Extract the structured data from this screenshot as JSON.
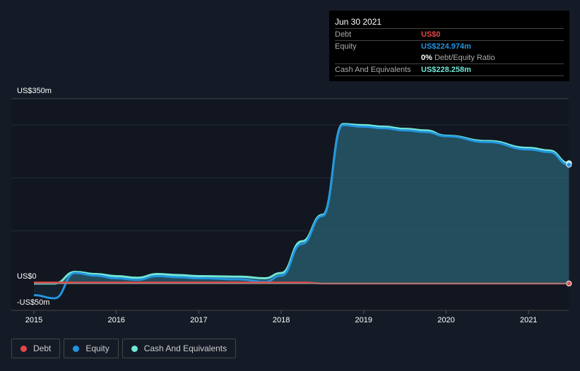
{
  "tooltip": {
    "date": "Jun 30 2021",
    "debt_label": "Debt",
    "debt_value": "US$0",
    "equity_label": "Equity",
    "equity_value": "US$224.974m",
    "ratio_value": "0%",
    "ratio_label": "Debt/Equity Ratio",
    "cash_label": "Cash And Equivalents",
    "cash_value": "US$228.258m"
  },
  "colors": {
    "debt": "#e84545",
    "equity": "#2394df",
    "cash": "#71e7d6"
  },
  "chart_data": {
    "type": "line",
    "ylim": [
      -50,
      350
    ],
    "y_tick_labels": [
      "US$350m",
      "US$0",
      "-US$50m"
    ],
    "x_tick_labels": [
      "2015",
      "2016",
      "2017",
      "2018",
      "2019",
      "2020",
      "2021"
    ],
    "legend": [
      "Debt",
      "Equity",
      "Cash And Equivalents"
    ],
    "legend_position": "bottom-left",
    "series": [
      {
        "name": "Cash And Equivalents",
        "x": [
          2015,
          2015.25,
          2015.5,
          2015.75,
          2016,
          2016.25,
          2016.5,
          2016.75,
          2017,
          2017.5,
          2017.8,
          2018,
          2018.25,
          2018.5,
          2018.75,
          2019,
          2019.25,
          2019.5,
          2019.75,
          2020,
          2020.5,
          2021,
          2021.25,
          2021.49
        ],
        "values": [
          0,
          0,
          22,
          18,
          14,
          11,
          18,
          16,
          14,
          13,
          10,
          20,
          80,
          130,
          302,
          300,
          297,
          293,
          290,
          280,
          270,
          257,
          252,
          228
        ]
      },
      {
        "name": "Equity",
        "x": [
          2015,
          2015.25,
          2015.5,
          2015.75,
          2016,
          2016.25,
          2016.5,
          2016.75,
          2017,
          2017.5,
          2017.8,
          2018,
          2018.25,
          2018.5,
          2018.75,
          2019,
          2019.25,
          2019.5,
          2019.75,
          2020,
          2020.5,
          2021,
          2021.25,
          2021.49
        ],
        "values": [
          -22,
          -28,
          20,
          15,
          10,
          7,
          14,
          12,
          10,
          8,
          3,
          15,
          75,
          128,
          300,
          297,
          294,
          290,
          287,
          279,
          268,
          254,
          249,
          225
        ]
      },
      {
        "name": "Debt",
        "x": [
          2015,
          2015.5,
          2016,
          2017,
          2018,
          2018.3,
          2018.5,
          2019,
          2020,
          2021,
          2021.49
        ],
        "values": [
          2,
          2,
          2,
          2,
          2,
          2,
          0,
          0,
          0,
          0,
          0
        ]
      }
    ]
  }
}
